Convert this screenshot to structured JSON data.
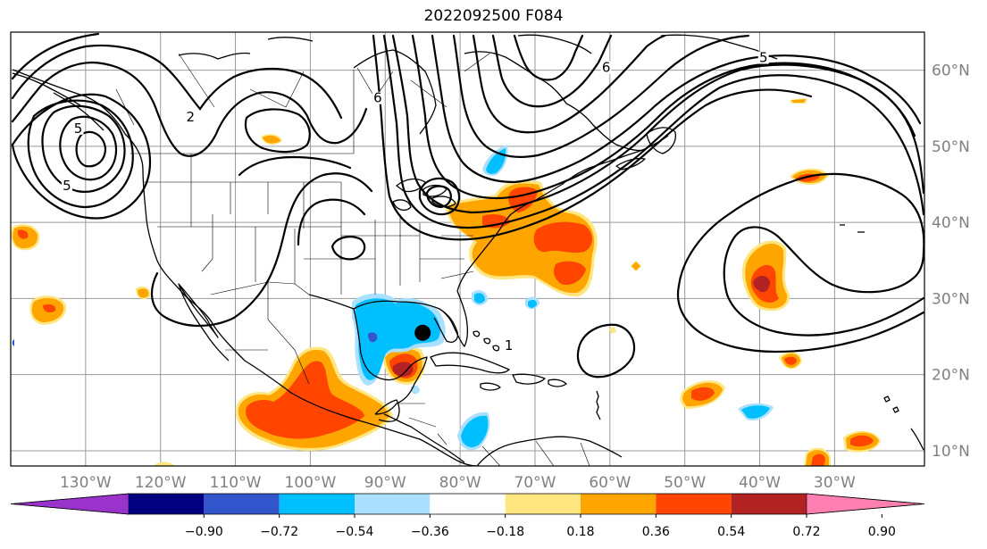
{
  "title": "2022092500 F084",
  "map": {
    "lon_min": -140,
    "lon_max": -18,
    "lat_min": 8,
    "lat_max": 65,
    "lon_ticks": [
      {
        "value": -130,
        "label": "130°W"
      },
      {
        "value": -120,
        "label": "120°W"
      },
      {
        "value": -110,
        "label": "110°W"
      },
      {
        "value": -100,
        "label": "100°W"
      },
      {
        "value": -90,
        "label": "90°W"
      },
      {
        "value": -80,
        "label": "80°W"
      },
      {
        "value": -70,
        "label": "70°W"
      },
      {
        "value": -60,
        "label": "60°W"
      },
      {
        "value": -50,
        "label": "50°W"
      },
      {
        "value": -40,
        "label": "40°W"
      },
      {
        "value": -30,
        "label": "30°W"
      }
    ],
    "lat_ticks": [
      {
        "value": 10,
        "label": "10°N"
      },
      {
        "value": 20,
        "label": "20°N"
      },
      {
        "value": 30,
        "label": "30°N"
      },
      {
        "value": 40,
        "label": "40°N"
      },
      {
        "value": 50,
        "label": "50°N"
      },
      {
        "value": 60,
        "label": "60°N"
      }
    ],
    "storm_marker": {
      "lon": -85,
      "lat": 25.5
    },
    "contour_labels": [
      {
        "text": "2",
        "lon": -116,
        "lat": 53.5
      },
      {
        "text": "6",
        "lon": -91,
        "lat": 56
      },
      {
        "text": "6",
        "lon": -60.5,
        "lat": 60
      },
      {
        "text": "5",
        "lon": -39.5,
        "lat": 61.3
      },
      {
        "text": "5",
        "lon": -131,
        "lat": 52
      },
      {
        "text": "5",
        "lon": -132.5,
        "lat": 44.5
      },
      {
        "text": "1",
        "lon": -73.5,
        "lat": 23.5
      }
    ]
  },
  "colorbar": {
    "colors": [
      "#9933cc",
      "#000080",
      "#3355cc",
      "#00bfff",
      "#a9dfff",
      "#ffffff",
      "#ffe680",
      "#ffa500",
      "#ff4500",
      "#b22222",
      "#ff80b0"
    ],
    "labels": [
      "−0.90",
      "−0.72",
      "−0.54",
      "−0.36",
      "−0.18",
      "0.18",
      "0.36",
      "0.54",
      "0.72",
      "0.90"
    ]
  }
}
